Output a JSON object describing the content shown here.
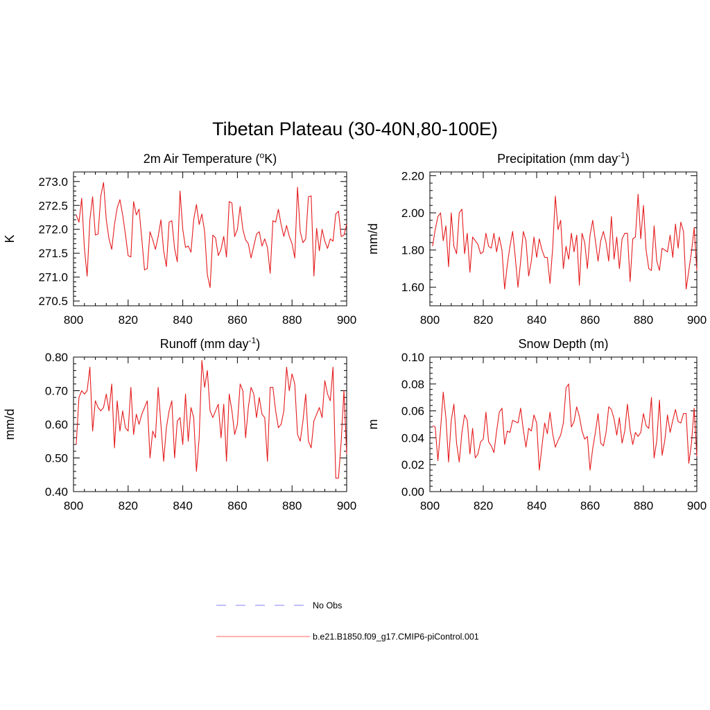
{
  "figure_title": "Tibetan Plateau (30-40N,80-100E)",
  "series_color": "#e41a1c",
  "legend": [
    {
      "label": "No Obs",
      "color": "#9999ff",
      "style": "dashed"
    },
    {
      "label": "b.e21.B1850.f09_g17.CMIP6-piControl.001",
      "color": "#ff8080",
      "style": "solid"
    }
  ],
  "chart_data": [
    {
      "type": "line",
      "title": "2m Air Temperature (",
      "title_sup": "o",
      "title_after": "K)",
      "ylabel": "K",
      "xlim": [
        800,
        900
      ],
      "ylim": [
        270.4,
        273.2
      ],
      "xticks": [
        800,
        820,
        840,
        860,
        880,
        900
      ],
      "xtick_labels": [
        "800",
        "820",
        "840",
        "860",
        "880",
        "900"
      ],
      "yticks": [
        270.5,
        271.0,
        271.5,
        272.0,
        272.5,
        273.0
      ],
      "ytick_labels": [
        "270.5",
        "271.0",
        "271.5",
        "272.0",
        "272.5",
        "273.0"
      ],
      "x_start": 801,
      "values": [
        272.3,
        272.15,
        272.65,
        271.6,
        271.02,
        272.2,
        272.68,
        271.88,
        271.9,
        272.7,
        272.98,
        272.2,
        271.8,
        271.58,
        272.1,
        272.45,
        272.62,
        272.3,
        271.9,
        271.45,
        271.42,
        272.58,
        272.3,
        272.42,
        271.8,
        271.15,
        271.18,
        271.95,
        271.78,
        271.58,
        271.85,
        272.2,
        271.55,
        271.22,
        272.15,
        272.18,
        271.6,
        271.32,
        272.8,
        272.0,
        271.62,
        271.65,
        271.52,
        272.2,
        272.52,
        272.1,
        272.32,
        271.95,
        271.05,
        270.78,
        271.88,
        271.82,
        271.45,
        271.58,
        271.85,
        271.42,
        272.58,
        272.55,
        271.85,
        272.0,
        272.48,
        272.0,
        271.78,
        271.7,
        271.4,
        271.65,
        271.9,
        271.95,
        271.65,
        271.8,
        271.62,
        271.08,
        272.18,
        272.15,
        272.42,
        272.1,
        271.85,
        272.08,
        271.85,
        271.7,
        271.4,
        272.88,
        271.95,
        271.72,
        271.8,
        272.68,
        272.7,
        271.02,
        272.02,
        271.55,
        272.0,
        271.75,
        271.6,
        271.8,
        271.75,
        272.32,
        272.38,
        271.85,
        271.88,
        272.1
      ]
    },
    {
      "type": "line",
      "title": "Precipitation (mm day",
      "title_sup": "-1",
      "title_after": ")",
      "ylabel": "mm/d",
      "xlim": [
        800,
        900
      ],
      "ylim": [
        1.5,
        2.22
      ],
      "xticks": [
        800,
        820,
        840,
        860,
        880,
        900
      ],
      "xtick_labels": [
        "800",
        "820",
        "840",
        "860",
        "880",
        "900"
      ],
      "yticks": [
        1.6,
        1.8,
        2.0,
        2.2
      ],
      "ytick_labels": [
        "1.60",
        "1.80",
        "2.00",
        "2.20"
      ],
      "x_start": 801,
      "values": [
        1.82,
        1.91,
        1.98,
        2.0,
        1.85,
        1.93,
        1.71,
        2.0,
        1.82,
        1.78,
        2.0,
        2.02,
        1.78,
        1.89,
        1.68,
        1.87,
        1.85,
        1.83,
        1.78,
        1.79,
        1.89,
        1.82,
        1.81,
        1.89,
        1.79,
        1.87,
        1.8,
        1.59,
        1.72,
        1.82,
        1.9,
        1.76,
        1.6,
        1.74,
        1.9,
        1.85,
        1.66,
        1.74,
        1.87,
        1.76,
        1.86,
        1.8,
        1.76,
        1.76,
        1.62,
        1.81,
        2.09,
        1.91,
        1.96,
        1.7,
        1.82,
        1.75,
        1.89,
        1.79,
        1.88,
        1.61,
        1.89,
        1.84,
        1.7,
        1.88,
        1.96,
        1.85,
        1.74,
        1.85,
        1.9,
        1.84,
        1.74,
        1.98,
        1.75,
        1.87,
        1.7,
        1.86,
        1.89,
        1.89,
        1.63,
        1.86,
        1.87,
        2.1,
        1.86,
        2.04,
        1.8,
        1.7,
        1.69,
        1.93,
        1.74,
        1.69,
        1.81,
        1.8,
        1.79,
        1.88,
        1.76,
        1.94,
        1.81,
        1.95,
        1.9,
        1.59,
        1.69,
        1.79,
        1.92,
        1.69
      ]
    },
    {
      "type": "line",
      "title": "Runoff (mm day",
      "title_sup": "-1",
      "title_after": ")",
      "ylabel": "mm/d",
      "xlim": [
        800,
        900
      ],
      "ylim": [
        0.4,
        0.8
      ],
      "xticks": [
        800,
        820,
        840,
        860,
        880,
        900
      ],
      "xtick_labels": [
        "800",
        "820",
        "840",
        "860",
        "880",
        "900"
      ],
      "yticks": [
        0.4,
        0.5,
        0.6,
        0.7,
        0.8
      ],
      "ytick_labels": [
        "0.40",
        "0.50",
        "0.60",
        "0.70",
        "0.80"
      ],
      "x_start": 801,
      "values": [
        0.54,
        0.68,
        0.7,
        0.69,
        0.7,
        0.77,
        0.58,
        0.67,
        0.65,
        0.64,
        0.65,
        0.69,
        0.64,
        0.72,
        0.53,
        0.67,
        0.58,
        0.64,
        0.59,
        0.58,
        0.71,
        0.57,
        0.63,
        0.6,
        0.63,
        0.65,
        0.67,
        0.5,
        0.58,
        0.56,
        0.71,
        0.6,
        0.49,
        0.59,
        0.64,
        0.67,
        0.5,
        0.61,
        0.62,
        0.54,
        0.69,
        0.55,
        0.65,
        0.62,
        0.46,
        0.56,
        0.79,
        0.71,
        0.76,
        0.64,
        0.62,
        0.64,
        0.66,
        0.56,
        0.66,
        0.49,
        0.69,
        0.64,
        0.57,
        0.6,
        0.72,
        0.7,
        0.56,
        0.65,
        0.71,
        0.69,
        0.62,
        0.68,
        0.63,
        0.62,
        0.49,
        0.71,
        0.71,
        0.64,
        0.59,
        0.6,
        0.64,
        0.77,
        0.7,
        0.75,
        0.72,
        0.57,
        0.55,
        0.61,
        0.69,
        0.55,
        0.53,
        0.61,
        0.63,
        0.65,
        0.62,
        0.73,
        0.69,
        0.67,
        0.77,
        0.44,
        0.44,
        0.55,
        0.7,
        0.51
      ]
    },
    {
      "type": "line",
      "title": "Snow Depth (m)",
      "title_sup": "",
      "title_after": "",
      "ylabel": "m",
      "xlim": [
        800,
        900
      ],
      "ylim": [
        0.0,
        0.1
      ],
      "xticks": [
        800,
        820,
        840,
        860,
        880,
        900
      ],
      "xtick_labels": [
        "800",
        "820",
        "840",
        "860",
        "880",
        "900"
      ],
      "yticks": [
        0.0,
        0.02,
        0.04,
        0.06,
        0.08,
        0.1
      ],
      "ytick_labels": [
        "0.00",
        "0.02",
        "0.04",
        "0.06",
        "0.08",
        "0.10"
      ],
      "x_start": 801,
      "values": [
        0.049,
        0.048,
        0.023,
        0.046,
        0.074,
        0.055,
        0.022,
        0.053,
        0.065,
        0.036,
        0.022,
        0.044,
        0.057,
        0.053,
        0.028,
        0.047,
        0.025,
        0.028,
        0.037,
        0.039,
        0.059,
        0.037,
        0.034,
        0.029,
        0.045,
        0.059,
        0.062,
        0.035,
        0.045,
        0.044,
        0.053,
        0.052,
        0.051,
        0.062,
        0.046,
        0.033,
        0.047,
        0.045,
        0.057,
        0.051,
        0.016,
        0.034,
        0.051,
        0.043,
        0.059,
        0.043,
        0.033,
        0.038,
        0.042,
        0.051,
        0.077,
        0.08,
        0.048,
        0.052,
        0.063,
        0.056,
        0.045,
        0.039,
        0.041,
        0.016,
        0.032,
        0.044,
        0.058,
        0.036,
        0.034,
        0.044,
        0.063,
        0.061,
        0.054,
        0.042,
        0.055,
        0.036,
        0.045,
        0.065,
        0.046,
        0.035,
        0.044,
        0.041,
        0.044,
        0.058,
        0.049,
        0.047,
        0.07,
        0.025,
        0.038,
        0.068,
        0.027,
        0.038,
        0.057,
        0.044,
        0.053,
        0.061,
        0.052,
        0.051,
        0.058,
        0.058,
        0.021,
        0.036,
        0.062,
        0.026
      ]
    }
  ]
}
